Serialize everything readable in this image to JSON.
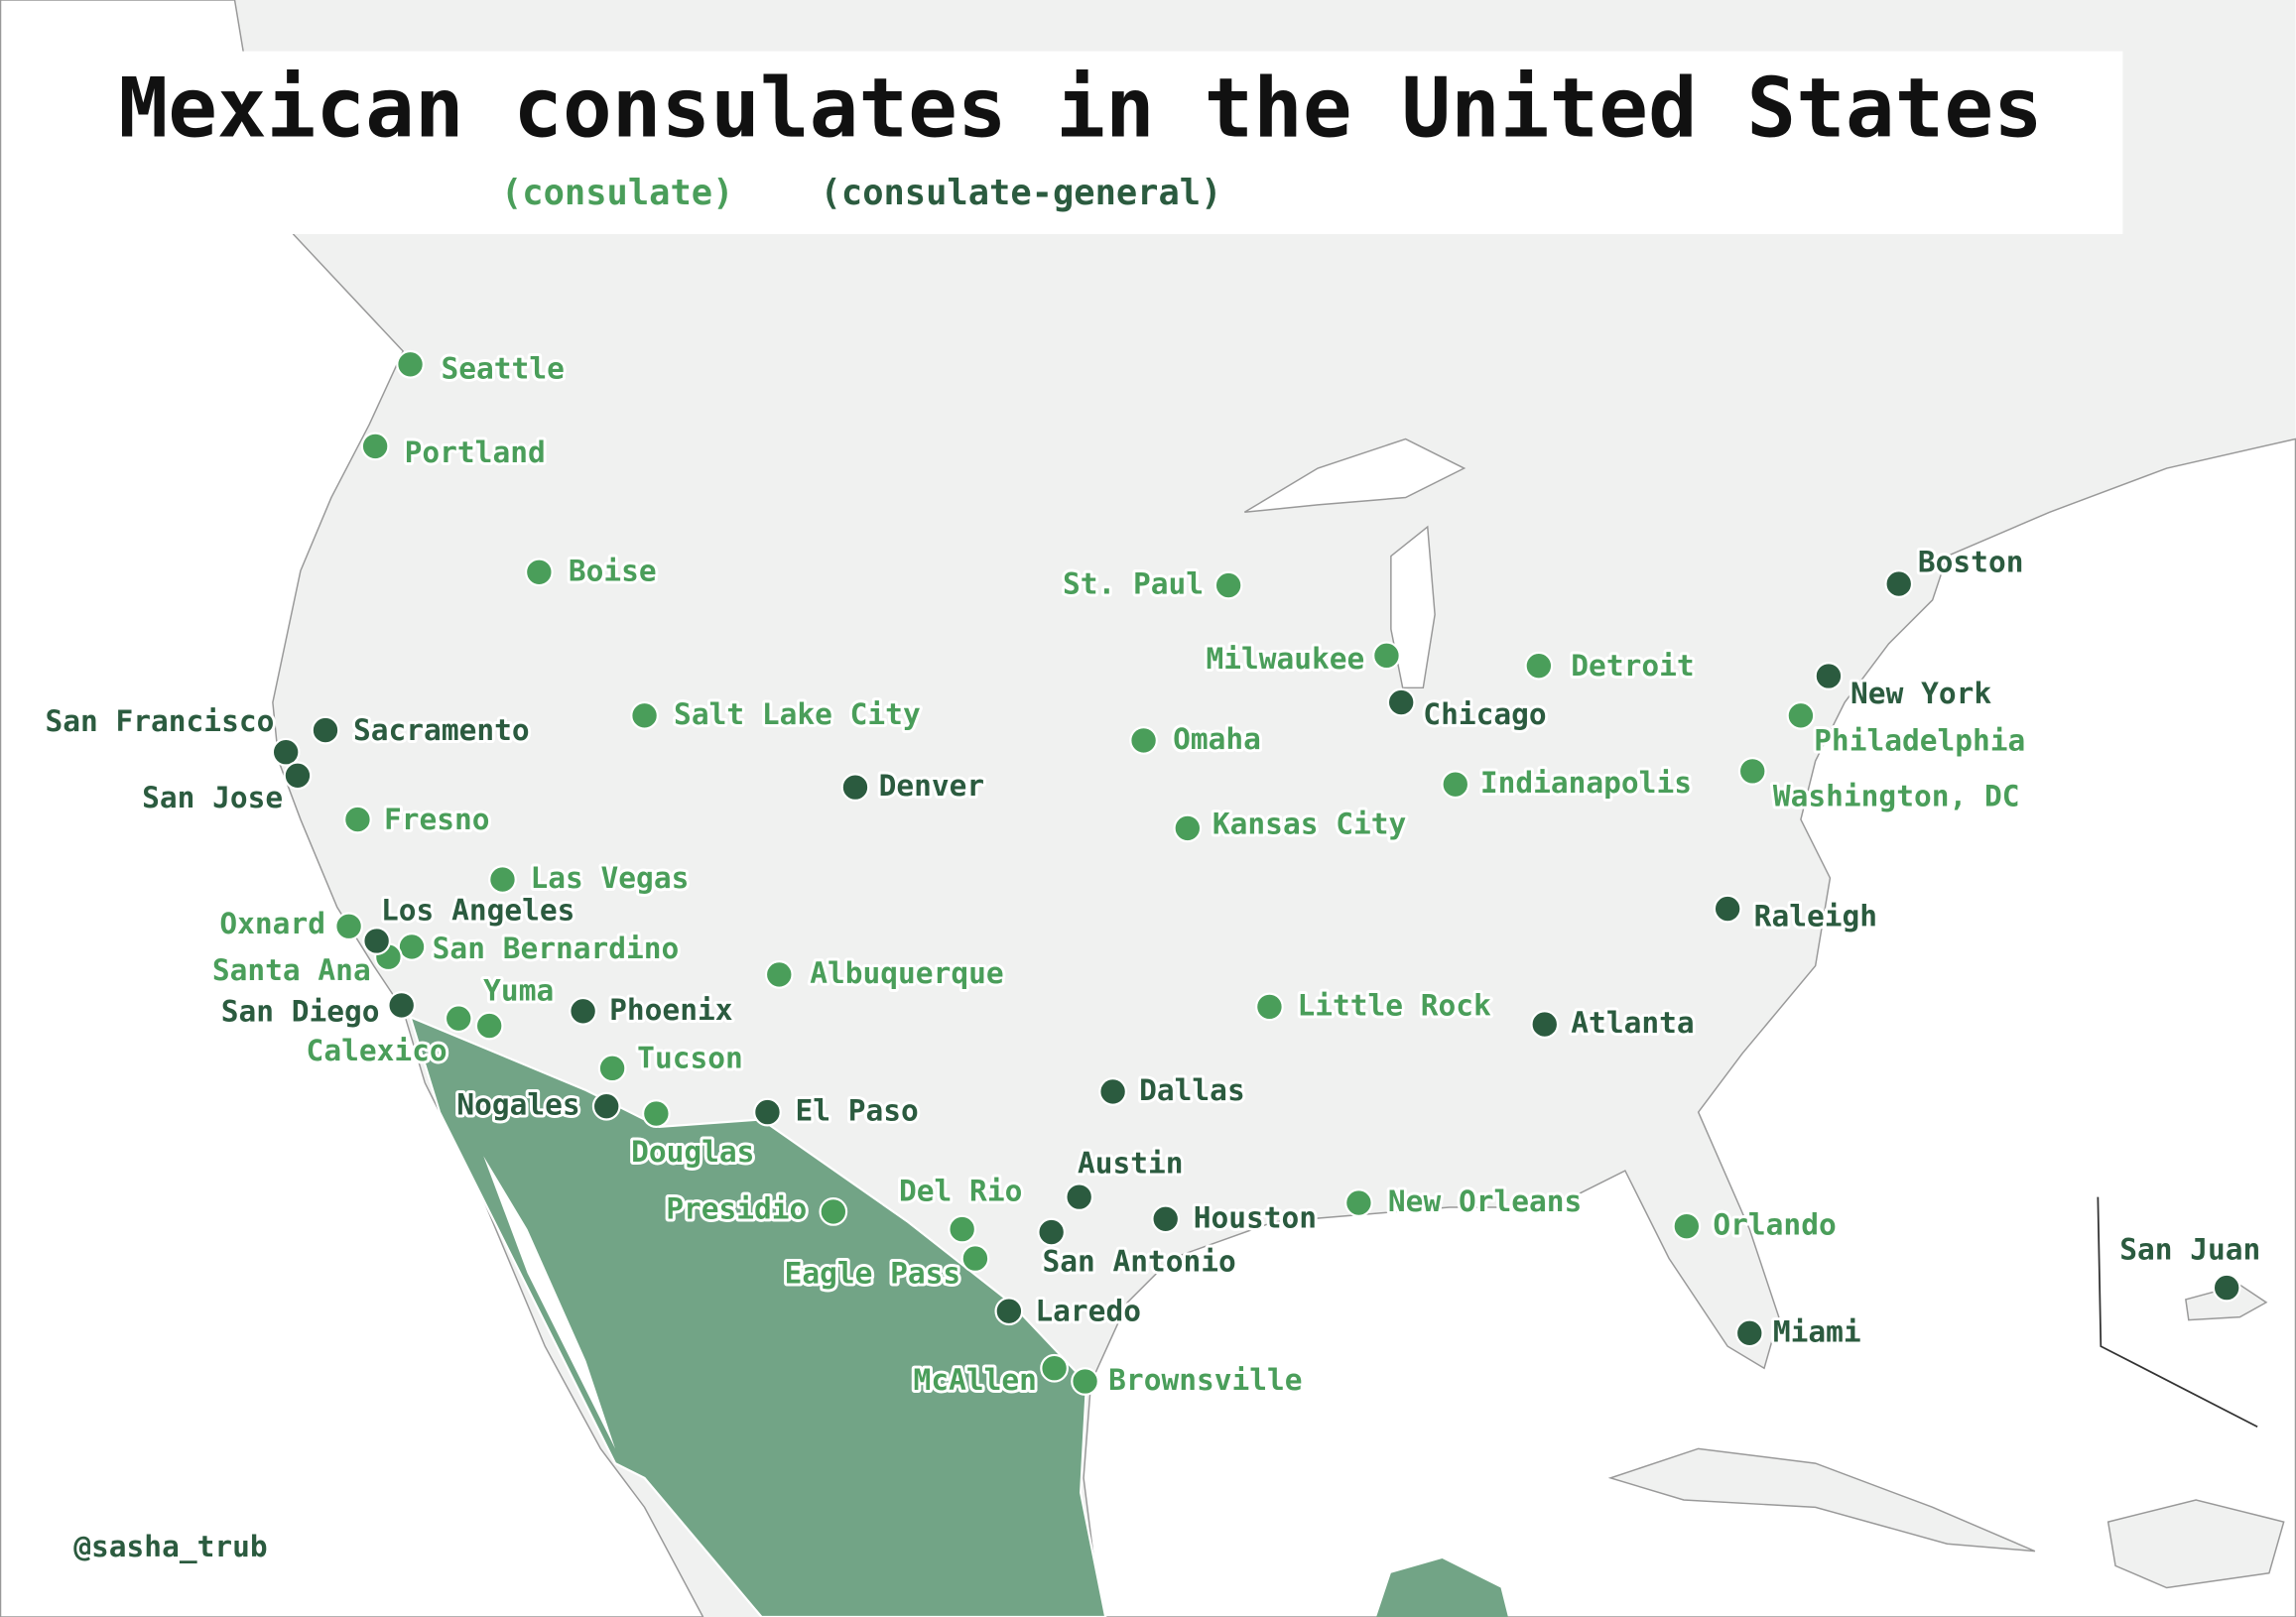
{
  "title": "Mexican consulates in the United States",
  "credit": "@sasha_trub",
  "groups": [
    {
      "label": "(consulate)",
      "color": "#4a9e5a",
      "cities": [
        "Seattle",
        "Portland",
        "Boise",
        "Salt Lake City",
        "Fresno",
        "Las Vegas",
        "Oxnard",
        "San Bernardino",
        "Santa Ana",
        "Yuma",
        "Calexico",
        "Tucson",
        "Douglas",
        "Albuquerque",
        "Presidio",
        "Del Rio",
        "Eagle Pass",
        "McAllen",
        "Brownsville",
        "Omaha",
        "Kansas City",
        "St. Paul",
        "Milwaukee",
        "Little Rock",
        "Detroit",
        "Indianapolis",
        "New Orleans",
        "Orlando",
        "Philadelphia",
        "Washington, DC"
      ]
    },
    {
      "label": "(consulate-general)",
      "color": "#2b5b3f",
      "cities": [
        "Sacramento",
        "San Francisco",
        "San Jose",
        "Los Angeles",
        "San Diego",
        "Phoenix",
        "Nogales",
        "El Paso",
        "Denver",
        "Dallas",
        "Austin",
        "San Antonio",
        "Houston",
        "Laredo",
        "Chicago",
        "Atlanta",
        "Raleigh",
        "Boston",
        "New York",
        "Miami",
        "San Juan"
      ]
    }
  ]
}
